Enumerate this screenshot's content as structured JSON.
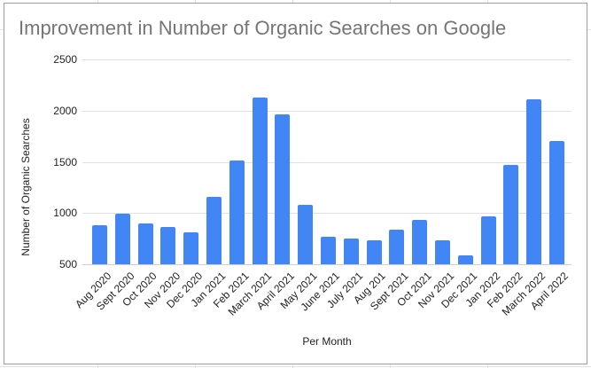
{
  "chart_data": {
    "type": "bar",
    "title": "Improvement in Number of Organic Searches on Google",
    "xlabel": "Per Month",
    "ylabel": "Number of Organic Searches",
    "ylim": [
      500,
      2500
    ],
    "yticks": [
      500,
      1000,
      1500,
      2000,
      2500
    ],
    "grid": true,
    "legend": "none",
    "color": "#4285f4",
    "categories": [
      "Aug 2020",
      "Sept 2020",
      "Oct 2020",
      "Nov 2020",
      "Dec 2020",
      "Jan 2021",
      "Feb 2021",
      "March 2021",
      "April 2021",
      "May 2021",
      "June 2021",
      "July 2021",
      "Aug 201",
      "Sept 2021",
      "Oct 2021",
      "Nov 2021",
      "Dec 2021",
      "Jan 2022",
      "Feb 2022",
      "March 2022",
      "April 2022"
    ],
    "values": [
      880,
      990,
      897,
      862,
      810,
      1155,
      1509,
      2129,
      1966,
      1078,
      765,
      753,
      735,
      839,
      934,
      735,
      583,
      971,
      1472,
      2112,
      1701
    ]
  },
  "labels": {
    "title": "Improvement in Number of Organic Searches on Google",
    "xlabel": "Per Month",
    "ylabel": "Number of Organic Searches"
  }
}
